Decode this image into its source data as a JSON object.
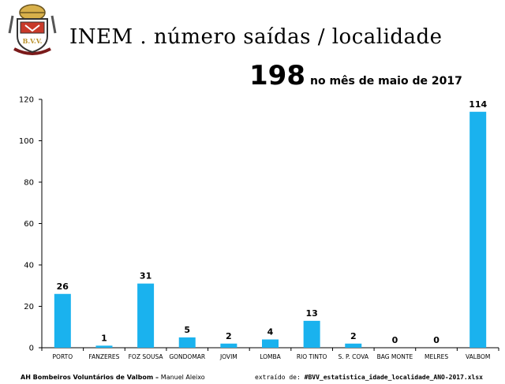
{
  "header": {
    "title": "INEM . número saídas / localidade",
    "total_value": "198",
    "total_label": "no mês de maio de 2017",
    "crest_text": "B.V.V."
  },
  "chart_data": {
    "type": "bar",
    "categories": [
      "PORTO",
      "FANZERES",
      "FOZ SOUSA",
      "GONDOMAR",
      "JOVIM",
      "LOMBA",
      "RIO TINTO",
      "S. P. COVA",
      "BAG MONTE",
      "MELRES",
      "VALBOM"
    ],
    "values": [
      26,
      1,
      31,
      5,
      2,
      4,
      13,
      2,
      0,
      0,
      114
    ],
    "ylim": [
      0,
      120
    ],
    "yticks": [
      0,
      20,
      40,
      60,
      80,
      100,
      120
    ],
    "bar_color": "#1ab2ee",
    "grid": false,
    "legend": "none",
    "data_labels": true
  },
  "footer": {
    "left_org": "AH Bombeiros Voluntários de Valbom",
    "left_sep": " – ",
    "left_author": "Manuel Aleixo",
    "right_prefix": "extraído de: ",
    "right_file": "#BVV_estatistica_idade_localidade_ANO-2017.xlsx"
  }
}
